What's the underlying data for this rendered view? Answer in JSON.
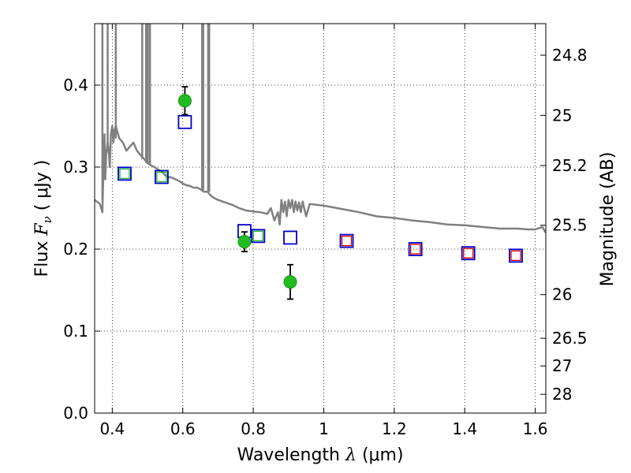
{
  "chart_data": {
    "type": "scatter",
    "xlabel": "Wavelength",
    "xlabel_symbol": "λ",
    "xlabel_unit": "(μm)",
    "ylabel": "Flux",
    "ylabel_symbol": "F",
    "ylabel_sub": "ν",
    "ylabel_unit": "( μJy )",
    "y2label": "Magnitude (AB)",
    "xlim": [
      0.35,
      1.63
    ],
    "ylim": [
      0.0,
      0.475
    ],
    "grid": true,
    "x_ticks": [
      0.4,
      0.6,
      0.8,
      1.0,
      1.2,
      1.4,
      1.6
    ],
    "x_tick_labels": [
      "0.4",
      "0.6",
      "0.8",
      "1",
      "1.2",
      "1.4",
      "1.6"
    ],
    "y_ticks": [
      0.0,
      0.1,
      0.2,
      0.3,
      0.4
    ],
    "y_tick_labels": [
      "0.0",
      "0.1",
      "0.2",
      "0.3",
      "0.4"
    ],
    "mag_ticks": [
      {
        "label": "24.8",
        "flux": 0.4365
      },
      {
        "label": "25",
        "flux": 0.3631
      },
      {
        "label": "25.2",
        "flux": 0.302
      },
      {
        "label": "25.5",
        "flux": 0.2291
      },
      {
        "label": "26",
        "flux": 0.1445
      },
      {
        "label": "26.5",
        "flux": 0.0912
      },
      {
        "label": "27",
        "flux": 0.0575
      },
      {
        "label": "28",
        "flux": 0.0229
      }
    ],
    "series": [
      {
        "name": "template_spectrum",
        "type": "line",
        "color": "#808080",
        "x": [
          0.35,
          0.365,
          0.372,
          0.375,
          0.378,
          0.38,
          0.383,
          0.387,
          0.39,
          0.393,
          0.396,
          0.4,
          0.403,
          0.406,
          0.41,
          0.42,
          0.43,
          0.44,
          0.45,
          0.46,
          0.47,
          0.48,
          0.49,
          0.5,
          0.51,
          0.52,
          0.53,
          0.54,
          0.55,
          0.56,
          0.57,
          0.58,
          0.59,
          0.6,
          0.61,
          0.62,
          0.63,
          0.64,
          0.65,
          0.66,
          0.67,
          0.68,
          0.69,
          0.7,
          0.72,
          0.74,
          0.76,
          0.78,
          0.8,
          0.82,
          0.84,
          0.85,
          0.86,
          0.87,
          0.875,
          0.88,
          0.885,
          0.89,
          0.895,
          0.9,
          0.905,
          0.91,
          0.915,
          0.92,
          0.925,
          0.93,
          0.935,
          0.94,
          0.95,
          0.96,
          1.0,
          1.05,
          1.1,
          1.15,
          1.2,
          1.25,
          1.3,
          1.35,
          1.4,
          1.45,
          1.5,
          1.55,
          1.58,
          1.6,
          1.62,
          1.63
        ],
        "y": [
          0.26,
          0.255,
          0.245,
          0.3,
          0.34,
          0.285,
          0.315,
          0.33,
          0.32,
          0.3,
          0.34,
          0.35,
          0.33,
          0.345,
          0.35,
          0.335,
          0.33,
          0.32,
          0.325,
          0.33,
          0.32,
          0.315,
          0.31,
          0.305,
          0.302,
          0.3,
          0.297,
          0.295,
          0.29,
          0.288,
          0.287,
          0.285,
          0.283,
          0.28,
          0.278,
          0.277,
          0.275,
          0.275,
          0.273,
          0.27,
          0.27,
          0.265,
          0.262,
          0.26,
          0.257,
          0.254,
          0.25,
          0.247,
          0.246,
          0.245,
          0.243,
          0.25,
          0.235,
          0.245,
          0.23,
          0.26,
          0.245,
          0.258,
          0.24,
          0.26,
          0.25,
          0.26,
          0.245,
          0.258,
          0.247,
          0.257,
          0.245,
          0.258,
          0.24,
          0.255,
          0.253,
          0.249,
          0.245,
          0.24,
          0.238,
          0.235,
          0.233,
          0.23,
          0.229,
          0.227,
          0.225,
          0.225,
          0.224,
          0.224,
          0.227,
          0.22
        ]
      },
      {
        "name": "spectrum_emission_lines",
        "type": "spikes",
        "color": "#808080",
        "x": [
          0.372,
          0.387,
          0.41,
          0.485,
          0.496,
          0.501,
          0.507,
          0.655,
          0.658,
          0.672,
          0.675
        ],
        "y_base": [
          0.26,
          0.32,
          0.335,
          0.31,
          0.305,
          0.304,
          0.303,
          0.273,
          0.272,
          0.27,
          0.27
        ],
        "y_top": 0.475
      },
      {
        "name": "photometry_measured",
        "type": "errorbar",
        "color": "#22bb22",
        "x": [
          0.606,
          0.775,
          0.905
        ],
        "y": [
          0.381,
          0.209,
          0.16
        ],
        "yerr": [
          0.017,
          0.012,
          0.021
        ]
      },
      {
        "name": "model_photometry_blue",
        "type": "square",
        "color": "#0000cc",
        "x": [
          0.435,
          0.54,
          0.606,
          0.775,
          0.814,
          0.905,
          1.065,
          1.26,
          1.41,
          1.545
        ],
        "y": [
          0.292,
          0.288,
          0.355,
          0.222,
          0.216,
          0.214,
          0.21,
          0.2,
          0.195,
          0.192
        ]
      },
      {
        "name": "model_photometry_green",
        "type": "square",
        "color": "#22bb22",
        "x": [
          0.435,
          0.54,
          0.814
        ],
        "y": [
          0.292,
          0.288,
          0.216
        ]
      },
      {
        "name": "model_photometry_red",
        "type": "square",
        "color": "#dd0000",
        "x": [
          1.065,
          1.26,
          1.41,
          1.545
        ],
        "y": [
          0.21,
          0.2,
          0.195,
          0.192
        ]
      }
    ]
  }
}
